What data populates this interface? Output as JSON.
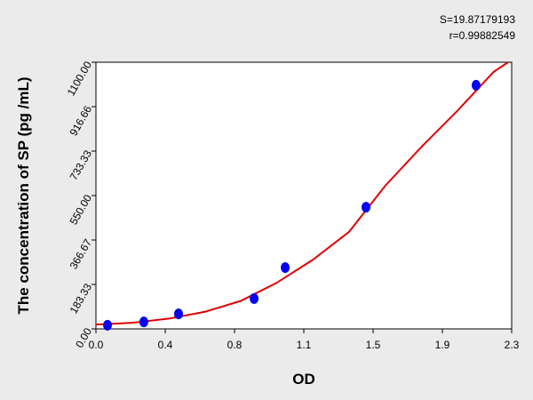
{
  "chart_data": {
    "type": "scatter",
    "annotations": [
      "S=19.87179193",
      "r=0.99882549"
    ],
    "x_label": "OD",
    "y_label": "The concentration of SP (pg /mL)",
    "xlim": [
      0,
      2.3
    ],
    "ylim": [
      0,
      1100
    ],
    "xticks": [
      {
        "value": 0,
        "label": "0.0"
      },
      {
        "value": 0.3833,
        "label": "0.4"
      },
      {
        "value": 0.7667,
        "label": "0.8"
      },
      {
        "value": 1.15,
        "label": "1.1"
      },
      {
        "value": 1.5333,
        "label": "1.5"
      },
      {
        "value": 1.9167,
        "label": "1.9"
      },
      {
        "value": 2.3,
        "label": "2.3"
      }
    ],
    "yticks": [
      {
        "value": 0,
        "label": "0.00"
      },
      {
        "value": 183.33,
        "label": "183.33"
      },
      {
        "value": 366.67,
        "label": "366.67"
      },
      {
        "value": 550,
        "label": "550.00"
      },
      {
        "value": 733.33,
        "label": "733.33"
      },
      {
        "value": 916.66,
        "label": "916.66"
      },
      {
        "value": 1100,
        "label": "1100.00"
      }
    ],
    "series": [
      {
        "color": "#0000ee",
        "x": [
          0.064,
          0.265,
          0.457,
          0.875,
          1.047,
          1.494,
          2.103
        ],
        "values": [
          15,
          29,
          62,
          125,
          253,
          502,
          1005
        ]
      },
      {
        "color": "#e00000",
        "x": [
          0,
          0.2,
          0.4,
          0.6,
          0.8,
          1.0,
          1.2,
          1.4,
          1.6,
          1.8,
          2.0,
          2.2,
          2.3
        ],
        "values": [
          18,
          25,
          42,
          70,
          115,
          190,
          285,
          400,
          590,
          750,
          900,
          1060,
          1110
        ]
      }
    ]
  }
}
